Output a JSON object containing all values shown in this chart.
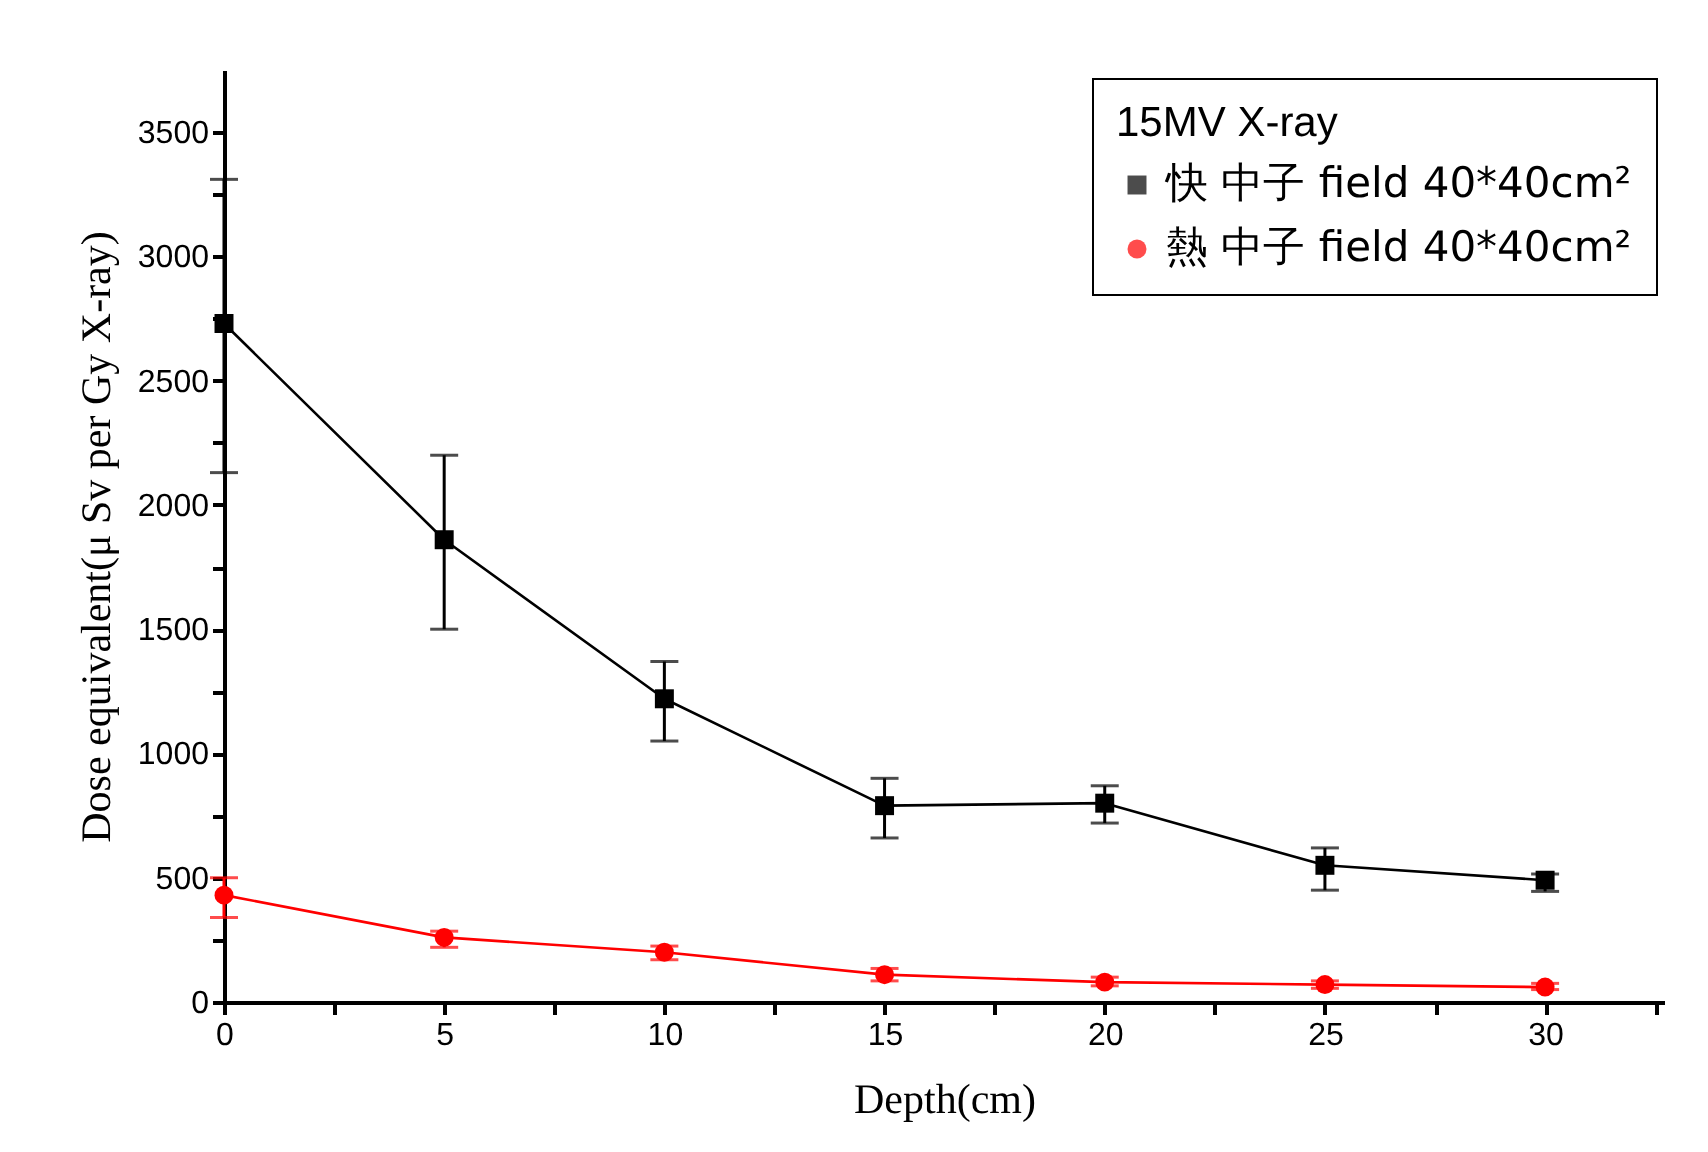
{
  "chart_data": {
    "type": "line",
    "xlabel": "Depth(cm)",
    "ylabel": "Dose equivalent(μ Sv per Gy X-ray)",
    "legend_title": "15MV X-ray",
    "legend": "top right",
    "x": [
      0,
      5,
      10,
      15,
      20,
      25,
      30
    ],
    "xlim": [
      0,
      32.7
    ],
    "xticks": [
      0,
      {
        "value": 2.5,
        "label": null
      },
      5,
      {
        "value": 7.5,
        "label": null
      },
      10,
      {
        "value": 12.5,
        "label": null
      },
      15,
      {
        "value": 17.5,
        "label": null
      },
      20,
      {
        "value": 22.5,
        "label": null
      },
      25,
      {
        "value": 27.5,
        "label": null
      },
      30,
      {
        "value": 32.5,
        "label": null
      }
    ],
    "ylim": [
      0,
      3750
    ],
    "yticks": [
      0,
      {
        "value": 250,
        "label": null
      },
      500,
      {
        "value": 750,
        "label": null
      },
      1000,
      {
        "value": 1250,
        "label": null
      },
      1500,
      {
        "value": 1750,
        "label": null
      },
      2000,
      {
        "value": 2250,
        "label": null
      },
      2500,
      {
        "value": 2750,
        "label": null
      },
      3000,
      {
        "value": 3250,
        "label": null
      },
      3500
    ],
    "series": [
      {
        "name": "快 中子 field 40*40cm²",
        "color": "#000000",
        "marker": "square",
        "values": [
          2730,
          1860,
          1220,
          790,
          800,
          550,
          490
        ],
        "errors": [
          [
            2130,
            3310
          ],
          [
            1500,
            2200
          ],
          [
            1050,
            1370
          ],
          [
            660,
            900
          ],
          [
            720,
            870
          ],
          [
            450,
            620
          ],
          [
            445,
            515
          ]
        ]
      },
      {
        "name": "熱 中子 field 40*40cm²",
        "color": "#ff0000",
        "marker": "circle",
        "values": [
          430,
          260,
          200,
          110,
          80,
          70,
          60
        ],
        "errors": [
          [
            340,
            500
          ],
          [
            220,
            285
          ],
          [
            170,
            225
          ],
          [
            85,
            135
          ],
          [
            65,
            100
          ],
          [
            55,
            85
          ],
          [
            50,
            75
          ]
        ]
      }
    ]
  }
}
